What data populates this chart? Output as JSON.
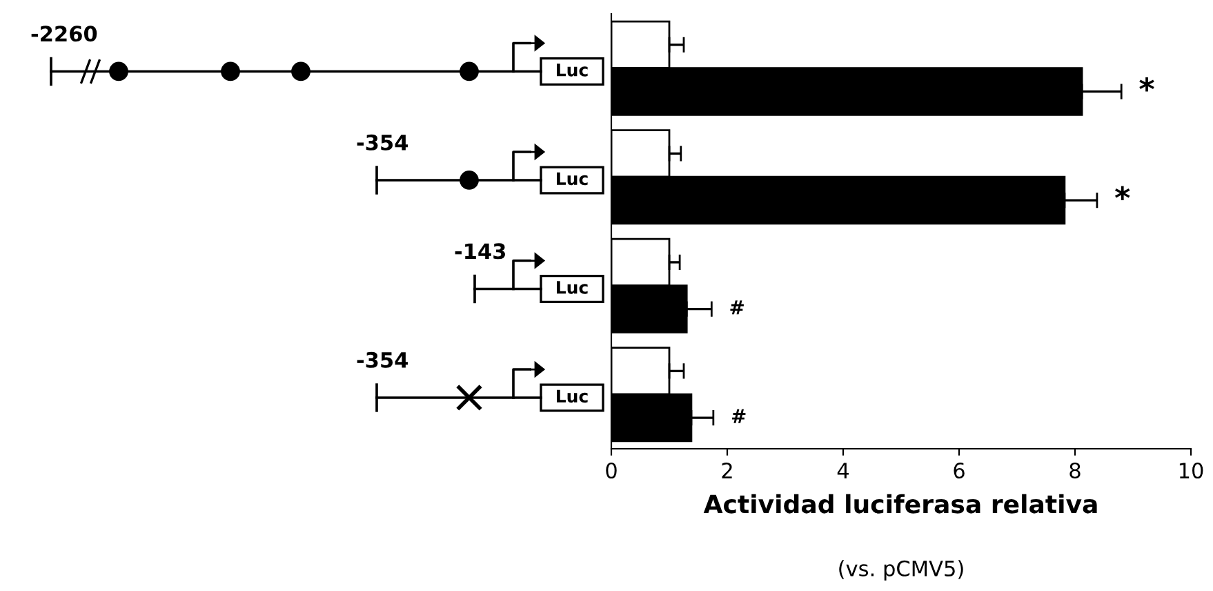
{
  "chart_data": {
    "type": "bar",
    "orientation": "horizontal",
    "categories": [
      null,
      null,
      null,
      null
    ],
    "series": [
      {
        "color": "#ffffff",
        "values": [
          1.0,
          1.0,
          1.0,
          1.0
        ],
        "errors": [
          0.25,
          0.2,
          0.18,
          0.25
        ]
      },
      {
        "color": "#000000",
        "values": [
          8.12,
          7.82,
          1.3,
          1.38
        ],
        "errors": [
          0.68,
          0.56,
          0.43,
          0.38
        ],
        "value_labels": [
          "*",
          "*",
          "#",
          "#"
        ]
      }
    ],
    "xlim": [
      0,
      10
    ],
    "xticks": [
      0,
      2,
      4,
      6,
      8,
      10
    ],
    "xlabel": "Actividad luciferasa relativa",
    "annotations": [
      "(vs. pCMV5)",
      "-2260",
      "Luc",
      "-354",
      "Luc",
      "-143",
      "Luc",
      "-354",
      "Luc"
    ],
    "grid": false
  }
}
